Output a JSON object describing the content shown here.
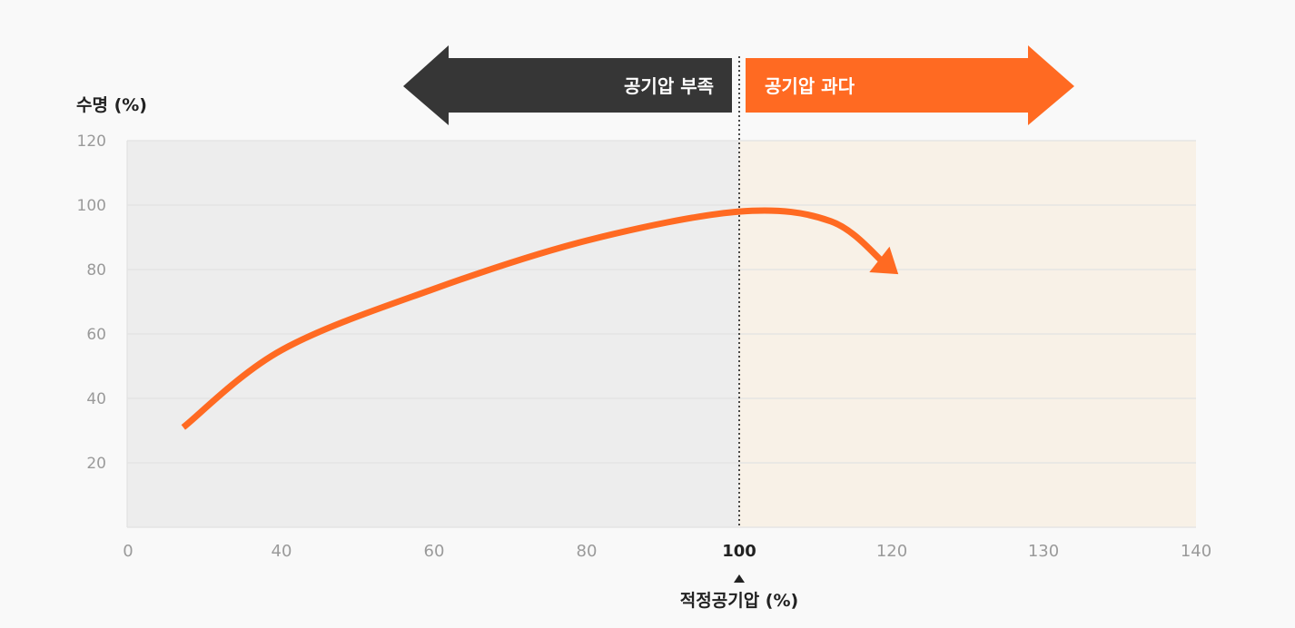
{
  "chart_data": {
    "type": "line",
    "ylabel": "수명 (%)",
    "xlabel": "적정공기압 (%)",
    "x_ticks": [
      "0",
      "40",
      "60",
      "80",
      "100",
      "120",
      "130",
      "140"
    ],
    "y_ticks": [
      20,
      40,
      60,
      80,
      100,
      120
    ],
    "ylim": [
      0,
      120
    ],
    "optimal_tick": "100",
    "grid": "horizontal",
    "series": [
      {
        "color": "#ff6a22",
        "x_index": [
          0.36,
          1.0,
          2.0,
          3.0,
          4.0,
          4.6,
          4.95
        ],
        "y": [
          31,
          55,
          74,
          89,
          98,
          95,
          82
        ]
      }
    ],
    "regions": {
      "low": {
        "label": "공기압 부족",
        "color": "#363636",
        "background": "#ededed"
      },
      "high": {
        "label": "공기압 과다",
        "color": "#ff6a22",
        "background": "#f8f1e7"
      }
    },
    "colors": {
      "curve": "#ff6a22",
      "grid": "#e2e2e2",
      "divider": "#111111"
    }
  }
}
